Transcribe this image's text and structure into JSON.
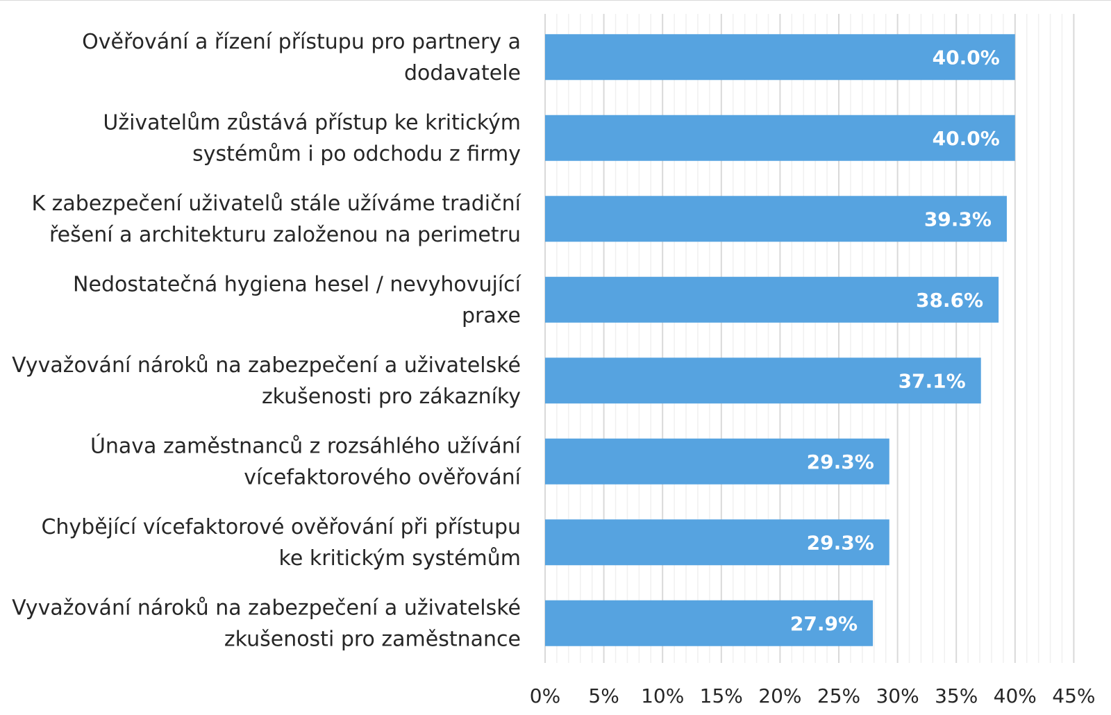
{
  "chart_data": {
    "type": "bar",
    "orientation": "horizontal",
    "categories": [
      "Ověřování a řízení přístupu pro partnery a dodavatele",
      "Uživatelům zůstává přístup ke kritickým systémům i po odchodu z firmy",
      "K zabezpečení uživatelů stále užíváme tradiční řešení a architekturu založenou na perimetru",
      "Nedostatečná hygiena hesel / nevyhovující praxe",
      "Vyvažování nároků na zabezpečení a uživatelské zkušenosti pro zákazníky",
      "Únava zaměstnanců z rozsáhlého užívání vícefaktorového ověřování",
      "Chybějící vícefaktorové ověřování při přístupu ke kritickým systémům",
      "Vyvažování nároků na zabezpečení a uživatelské zkušenosti pro zaměstnance"
    ],
    "category_lines": [
      [
        "Ověřování a řízení přístupu pro partnery a",
        "dodavatele"
      ],
      [
        "Uživatelům zůstává přístup ke kritickým",
        "systémům i po odchodu z firmy"
      ],
      [
        "K zabezpečení uživatelů stále užíváme tradiční",
        "řešení a architekturu založenou na perimetru"
      ],
      [
        "Nedostatečná hygiena hesel / nevyhovující",
        "praxe"
      ],
      [
        "Vyvažování nároků na zabezpečení a uživatelské",
        "zkušenosti pro zákazníky"
      ],
      [
        "Únava zaměstnanců z rozsáhlého užívání",
        "vícefaktorového ověřování"
      ],
      [
        "Chybějící vícefaktorové ověřování při přístupu",
        "ke kritickým systémům"
      ],
      [
        "Vyvažování nároků na zabezpečení a uživatelské",
        "zkušenosti pro zaměstnance"
      ]
    ],
    "values": [
      40.0,
      40.0,
      39.3,
      38.6,
      37.1,
      29.3,
      29.3,
      27.9
    ],
    "data_labels": [
      "40.0%",
      "40.0%",
      "39.3%",
      "38.6%",
      "37.1%",
      "29.3%",
      "29.3%",
      "27.9%"
    ],
    "xlim": [
      0,
      45
    ],
    "x_ticks": [
      0,
      5,
      10,
      15,
      20,
      25,
      30,
      35,
      40,
      45
    ],
    "x_tick_labels": [
      "0%",
      "5%",
      "10%",
      "15%",
      "20%",
      "25%",
      "30%",
      "35%",
      "40%",
      "45%"
    ],
    "minor_grid_step": 1,
    "grid": true,
    "legend": "none",
    "title": "",
    "xlabel": "",
    "ylabel": "",
    "colors": {
      "bar": "#56a3e0",
      "bar_label": "#ffffff",
      "category_text": "#262626",
      "tick_text": "#262626",
      "grid_major": "#d9d9d9",
      "grid_minor": "#f0f0f0",
      "axis": "#d9d9d9"
    }
  }
}
